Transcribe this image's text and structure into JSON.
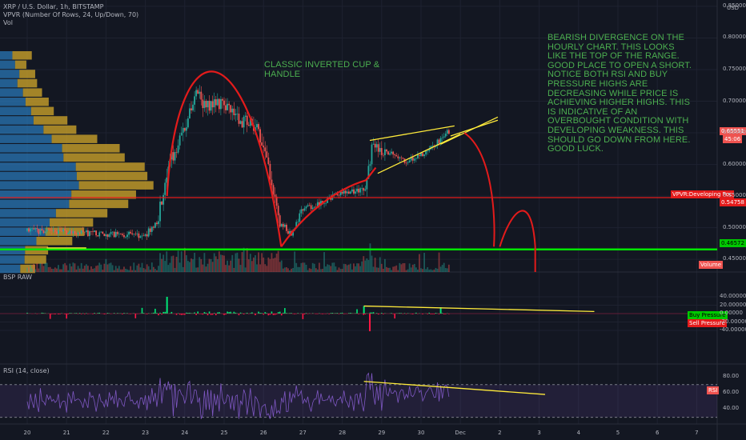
{
  "header": {
    "symbol": "XRP / U.S. Dollar, 1h, BITSTAMP",
    "indicator_vpvr": "VPVR (Number Of Rows, 24, Up/Down, 70)",
    "indicator_vol": "Vol",
    "currency": "USD"
  },
  "annotations": {
    "cup_handle": "CLASSIC INVERTED CUP &\nHANDLE",
    "divergence": "BEARISH DIVERGENCE ON THE\nHOURLY CHART.  THIS LOOKS\nLIKE THE TOP OF THE RANGE.\nGOOD PLACE TO OPEN A SHORT.\nNOTICE BOTH RSI AND BUY\nPRESSURE HIGHS ARE\nDECREASING WHILE PRICE IS\nACHIEVING HIGHER HIGHS.   THIS\nIS INDICATIVE OF AN\nOVERBOUGHT CONDITION WITH\nDEVELOPING WEAKNESS.  THIS\nSHOULD GO DOWN FROM HERE.\nGOOD LUCK."
  },
  "panes": {
    "bsp": "BSP RAW",
    "rsi": "RSI (14, close)"
  },
  "price_labels": {
    "last": "0.65551",
    "countdown": "45:06",
    "poc_name": "VPVR:Developing Poc",
    "poc_value": "0.54758",
    "support": "0.46572",
    "volume": "Volume",
    "buy_pressure": "Buy Pressure",
    "sell_pressure": "Sell Pressure",
    "rsi_tag": "RSI"
  },
  "colors": {
    "background": "#131722",
    "up_candle": "#26a69a",
    "down_candle": "#ef5350",
    "annotation_red": "#e31b1b",
    "trend_yellow": "#ffeb3b",
    "support_green": "#00e600",
    "note_green": "#4caf50",
    "vp_up": "#2a77b6",
    "vp_down": "#c8a02a",
    "rsi_line": "#7e57c2"
  },
  "chart_data": [
    {
      "type": "candlestick",
      "title": "XRP / U.S. Dollar, 1h, BITSTAMP",
      "ylabel": "USD",
      "ylim": [
        0.43,
        0.86
      ],
      "y_ticks": [
        "0.85000",
        "0.80000",
        "0.75000",
        "0.70000",
        "0.65000",
        "0.60000",
        "0.55000",
        "0.50000",
        "0.45000"
      ],
      "x_ticks": [
        "20",
        "21",
        "22",
        "23",
        "24",
        "25",
        "26",
        "27",
        "28",
        "29",
        "30",
        "Dec",
        "2",
        "3",
        "4",
        "5",
        "6",
        "7"
      ],
      "trend": [
        {
          "day": 20.0,
          "price": 0.495
        },
        {
          "day": 23.0,
          "price": 0.488
        },
        {
          "day": 23.3,
          "price": 0.51
        },
        {
          "day": 23.6,
          "price": 0.6
        },
        {
          "day": 24.0,
          "price": 0.66
        },
        {
          "day": 24.3,
          "price": 0.71
        },
        {
          "day": 24.6,
          "price": 0.69
        },
        {
          "day": 25.0,
          "price": 0.7
        },
        {
          "day": 25.4,
          "price": 0.67
        },
        {
          "day": 25.8,
          "price": 0.66
        },
        {
          "day": 26.1,
          "price": 0.6
        },
        {
          "day": 26.4,
          "price": 0.51
        },
        {
          "day": 26.7,
          "price": 0.49
        },
        {
          "day": 27.0,
          "price": 0.53
        },
        {
          "day": 27.5,
          "price": 0.54
        },
        {
          "day": 28.0,
          "price": 0.555
        },
        {
          "day": 28.6,
          "price": 0.56
        },
        {
          "day": 28.75,
          "price": 0.625
        },
        {
          "day": 29.2,
          "price": 0.62
        },
        {
          "day": 29.6,
          "price": 0.605
        },
        {
          "day": 30.0,
          "price": 0.615
        },
        {
          "day": 30.5,
          "price": 0.64
        },
        {
          "day": 30.75,
          "price": 0.655
        }
      ],
      "horizontal_lines": [
        {
          "label": "VPVR:Developing Poc",
          "price": 0.54758
        },
        {
          "label": "support",
          "price": 0.46572
        }
      ],
      "last_price": 0.65551
    },
    {
      "type": "bar",
      "title": "BSP RAW",
      "ylim": [
        -48,
        48
      ],
      "y_ticks": [
        "40.00000",
        "20.00000",
        "0.00000",
        "-20.00000",
        "-40.00000"
      ],
      "series": [
        {
          "name": "Buy Pressure",
          "peak_values": [
            {
              "day": 23.55,
              "value": 40
            },
            {
              "day": 28.55,
              "value": 18
            },
            {
              "day": 30.5,
              "value": 15
            }
          ]
        },
        {
          "name": "Sell Pressure",
          "peak_values": [
            {
              "day": 28.7,
              "value": -42
            }
          ]
        }
      ]
    },
    {
      "type": "line",
      "title": "RSI (14, close)",
      "ylim": [
        25,
        90
      ],
      "y_ticks": [
        "80.00",
        "60.00",
        "40.00"
      ],
      "band": [
        30,
        70
      ],
      "last_value": 58
    }
  ]
}
